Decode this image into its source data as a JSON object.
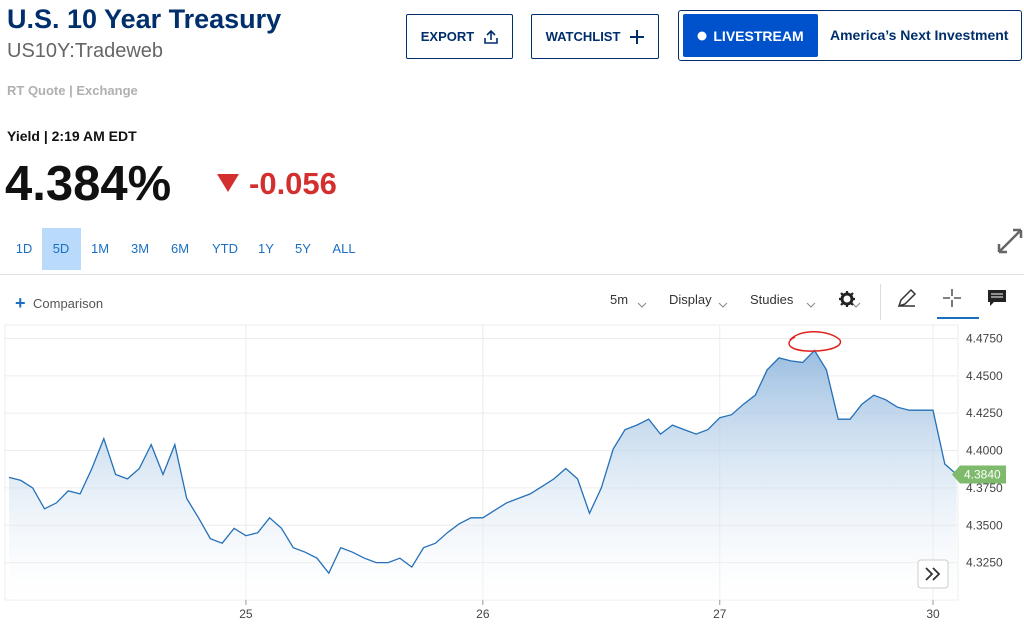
{
  "header": {
    "title": "U.S. 10 Year Treasury",
    "symbol": "US10Y:Tradeweb",
    "quote_source": "RT Quote | Exchange"
  },
  "buttons": {
    "export": "EXPORT",
    "watchlist": "WATCHLIST",
    "livestream": "LIVESTREAM",
    "promo": "America’s Next Investment"
  },
  "quote": {
    "time": "Yield | 2:19 AM EDT",
    "last": "4.384%",
    "change": "-0.056"
  },
  "ranges": [
    "1D",
    "5D",
    "1M",
    "3M",
    "6M",
    "YTD",
    "1Y",
    "5Y",
    "ALL"
  ],
  "toolbar": {
    "comparison": "Comparison",
    "interval": "5m",
    "display": "Display",
    "studies": "Studies"
  },
  "chart_data": {
    "type": "area",
    "color": "#2470b8",
    "categories": [
      null,
      null,
      null,
      null,
      null,
      null,
      null,
      null,
      null,
      null,
      null,
      null,
      null,
      null,
      null,
      null,
      null,
      null,
      null,
      null,
      "25",
      null,
      null,
      null,
      null,
      null,
      null,
      null,
      null,
      null,
      null,
      null,
      null,
      null,
      null,
      null,
      null,
      null,
      null,
      null,
      "26",
      null,
      null,
      null,
      null,
      null,
      null,
      null,
      null,
      null,
      null,
      null,
      null,
      null,
      null,
      null,
      null,
      null,
      null,
      null,
      "27",
      null,
      null,
      null,
      null,
      null,
      null,
      null,
      null,
      null,
      null,
      null,
      null,
      null,
      null,
      null,
      null,
      null,
      "30",
      null,
      null
    ],
    "values": [
      4.382,
      4.38,
      4.375,
      4.361,
      4.365,
      4.373,
      4.371,
      4.388,
      4.408,
      4.384,
      4.381,
      4.388,
      4.404,
      4.384,
      4.404,
      4.368,
      4.355,
      4.341,
      4.338,
      4.348,
      4.343,
      4.345,
      4.355,
      4.348,
      4.335,
      4.332,
      4.328,
      4.318,
      4.335,
      4.332,
      4.328,
      4.325,
      4.325,
      4.328,
      4.322,
      4.335,
      4.338,
      4.345,
      4.351,
      4.355,
      4.355,
      4.36,
      4.365,
      4.368,
      4.371,
      4.376,
      4.381,
      4.388,
      4.381,
      4.358,
      4.375,
      4.401,
      4.414,
      4.417,
      4.421,
      4.411,
      4.417,
      4.414,
      4.411,
      4.414,
      4.422,
      4.424,
      4.431,
      4.437,
      4.454,
      4.462,
      4.46,
      4.459,
      4.467,
      4.454,
      4.421,
      4.421,
      4.431,
      4.437,
      4.434,
      4.429,
      4.427,
      4.427,
      4.427,
      4.391,
      4.384
    ],
    "last_label": "4.3840",
    "ylim": [
      4.3,
      4.484
    ],
    "yticks": [
      {
        "value": 4.325,
        "label": "4.3250"
      },
      {
        "value": 4.35,
        "label": "4.3500"
      },
      {
        "value": 4.375,
        "label": "4.3750"
      },
      {
        "value": 4.4,
        "label": "4.4000"
      },
      {
        "value": 4.425,
        "label": "4.4250"
      },
      {
        "value": 4.45,
        "label": "4.4500"
      },
      {
        "value": 4.475,
        "label": "4.4750"
      }
    ],
    "grid": true
  }
}
